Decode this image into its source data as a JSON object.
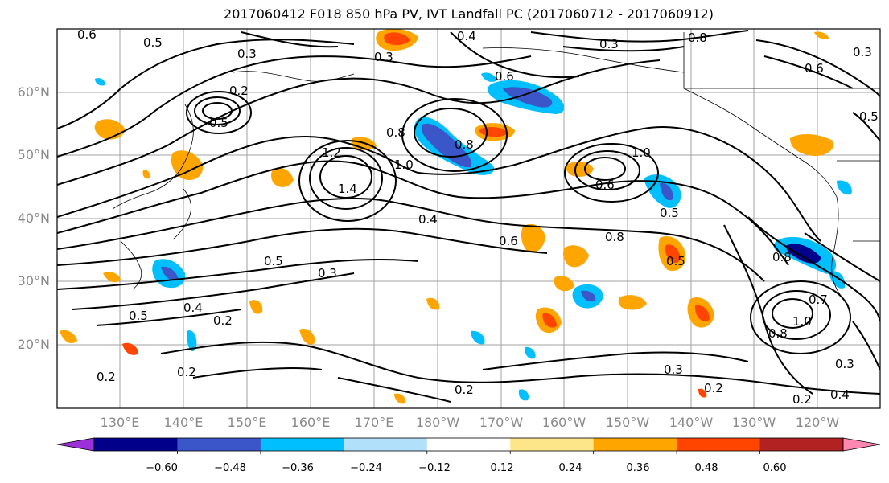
{
  "title": "2017060412 F018 850 hPa PV, IVT Landfall PC (2017060712 - 2017060912)",
  "axes": {
    "lat_labels": [
      "60°N",
      "50°N",
      "40°N",
      "30°N",
      "20°N"
    ],
    "lon_labels": [
      "130°E",
      "140°E",
      "150°E",
      "160°E",
      "170°E",
      "180°W",
      "170°W",
      "160°W",
      "150°W",
      "140°W",
      "130°W",
      "120°W"
    ],
    "grid": true
  },
  "colorbar": {
    "tick_labels": [
      "−0.60",
      "−0.48",
      "−0.36",
      "−0.24",
      "−0.12",
      "0.12",
      "0.24",
      "0.36",
      "0.48",
      "0.60"
    ],
    "colors": [
      "#9b30d9",
      "#00008b",
      "#3a56c8",
      "#00bfff",
      "#b0e0fa",
      "#ffffff",
      "#fde68a",
      "#ffa500",
      "#ff4500",
      "#b22222",
      "#ff88b0"
    ]
  },
  "contour_labels": [
    "0.6",
    "0.5",
    "0.4",
    "0.3",
    "0.3",
    "0.2",
    "0.5",
    "1.2",
    "1.4",
    "1.0",
    "0.8",
    "0.6",
    "0.4",
    "0.6",
    "0.8",
    "1.0",
    "0.6",
    "0.5",
    "0.8",
    "0.5",
    "0.3",
    "0.4",
    "0.2",
    "0.5",
    "0.2",
    "0.2",
    "0.2",
    "0.3",
    "0.2",
    "0.2",
    "0.4",
    "0.8",
    "0.7",
    "0.8",
    "1.0",
    "0.3",
    "0.5",
    "0.3",
    "0.6",
    "0.3",
    "0.8",
    "0.5"
  ]
}
